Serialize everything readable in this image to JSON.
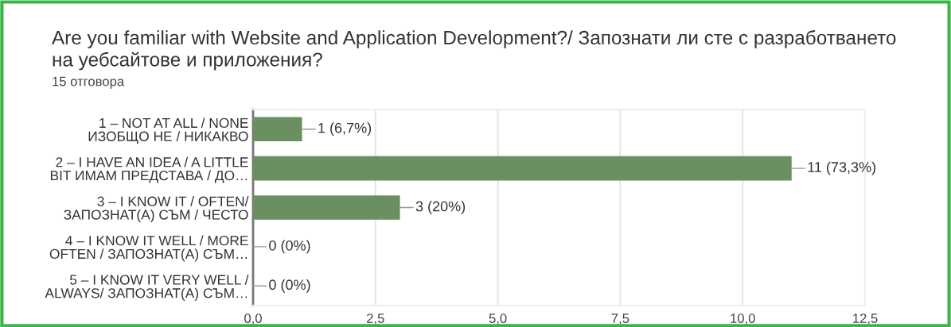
{
  "chart_data": {
    "type": "bar",
    "orientation": "horizontal",
    "title": "Are you familiar with Website and Application Development?/ Запознати ли сте с разработването\nна уебсайтове и приложения?",
    "subtitle": "15 отговора",
    "categories": [
      "1 – NOT AT ALL / NONE\nИЗОБЩО НЕ / НИКАКВО",
      "2 – I HAVE AN IDEA / A LITTLE\nBIT ИМАМ ПРЕДСТАВА / ДО…",
      "3 – I KNOW IT / OFTEN/\nЗАПОЗНАТ(А) СЪМ / ЧЕСТО",
      "4 – I KNOW IT WELL / MORE\nOFTEN / ЗАПОЗНАТ(А) СЪМ…",
      "5 – I KNOW IT VERY WELL /\nALWAYS/ ЗАПОЗНАТ(А) СЪМ…"
    ],
    "values": [
      1,
      11,
      3,
      0,
      0
    ],
    "value_labels": [
      "1 (6,7%)",
      "11 (73,3%)",
      "3 (20%)",
      "0 (0%)",
      "0 (0%)"
    ],
    "color": "#6a8f61",
    "xlim": [
      0,
      12.5
    ],
    "xticks": [
      {
        "value": 0,
        "label": "0,0"
      },
      {
        "value": 2.5,
        "label": "2,5"
      },
      {
        "value": 5,
        "label": "5,0"
      },
      {
        "value": 7.5,
        "label": "7,5"
      },
      {
        "value": 10,
        "label": "10,0"
      },
      {
        "value": 12.5,
        "label": "12,5"
      }
    ],
    "grid": "x"
  }
}
